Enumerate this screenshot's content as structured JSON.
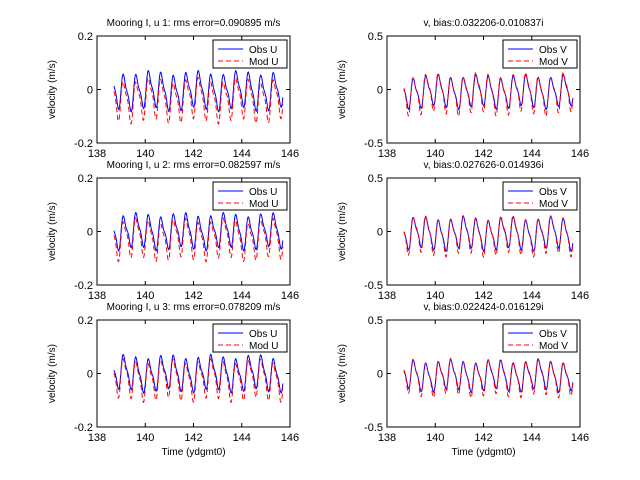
{
  "chart_data": [
    {
      "type": "line",
      "title": "Mooring I, u 1: rms error=0.090895 m/s",
      "ylabel": "velocity (m/s)",
      "xlabel": "",
      "xlim": [
        138,
        146
      ],
      "ylim": [
        -0.2,
        0.2
      ],
      "xticks": [
        "138",
        "140",
        "142",
        "144",
        "146"
      ],
      "yticks": [
        "-0.2",
        "0",
        "0.2"
      ],
      "legend_position": "top-right",
      "series": [
        {
          "name": "Obs U",
          "color": "#0000ff",
          "dash": "solid",
          "amp": 0.075,
          "offset": -0.005,
          "x0": 138.7,
          "x1": 145.7
        },
        {
          "name": "Mod U",
          "color": "#ff0000",
          "dash": "dashed",
          "amp": 0.085,
          "offset": -0.035,
          "x0": 138.7,
          "x1": 145.7
        }
      ]
    },
    {
      "type": "line",
      "title": "v, bias:0.032206-0.010837i",
      "ylabel": "velocity (m/s)",
      "xlabel": "",
      "xlim": [
        138,
        146
      ],
      "ylim": [
        -0.5,
        0.5
      ],
      "xticks": [
        "138",
        "140",
        "142",
        "144",
        "146"
      ],
      "yticks": [
        "-0.5",
        "0",
        "0.5"
      ],
      "legend_position": "top-right",
      "series": [
        {
          "name": "Obs V",
          "color": "#0000ff",
          "dash": "solid",
          "amp": 0.16,
          "offset": -0.02,
          "x0": 138.7,
          "x1": 145.7
        },
        {
          "name": "Mod V",
          "color": "#ff0000",
          "dash": "dashed",
          "amp": 0.2,
          "offset": -0.03,
          "x0": 138.7,
          "x1": 145.7
        }
      ]
    },
    {
      "type": "line",
      "title": "Mooring I, u 2: rms error=0.082597 m/s",
      "ylabel": "velocity (m/s)",
      "xlabel": "",
      "xlim": [
        138,
        146
      ],
      "ylim": [
        -0.2,
        0.2
      ],
      "xticks": [
        "138",
        "140",
        "142",
        "144",
        "146"
      ],
      "yticks": [
        "-0.2",
        "0",
        "0.2"
      ],
      "legend_position": "top-right",
      "series": [
        {
          "name": "Obs U",
          "color": "#0000ff",
          "dash": "solid",
          "amp": 0.07,
          "offset": 0.0,
          "x0": 138.7,
          "x1": 145.7
        },
        {
          "name": "Mod U",
          "color": "#ff0000",
          "dash": "dashed",
          "amp": 0.08,
          "offset": -0.025,
          "x0": 138.7,
          "x1": 145.7
        }
      ]
    },
    {
      "type": "line",
      "title": "v, bias:0.027626-0.014936i",
      "ylabel": "velocity (m/s)",
      "xlabel": "",
      "xlim": [
        138,
        146
      ],
      "ylim": [
        -0.5,
        0.5
      ],
      "xticks": [
        "138",
        "140",
        "142",
        "144",
        "146"
      ],
      "yticks": [
        "-0.5",
        "0",
        "0.5"
      ],
      "legend_position": "top-right",
      "series": [
        {
          "name": "Obs V",
          "color": "#0000ff",
          "dash": "solid",
          "amp": 0.16,
          "offset": -0.02,
          "x0": 138.7,
          "x1": 145.7
        },
        {
          "name": "Mod V",
          "color": "#ff0000",
          "dash": "dashed",
          "amp": 0.19,
          "offset": -0.03,
          "x0": 138.7,
          "x1": 145.7
        }
      ]
    },
    {
      "type": "line",
      "title": "Mooring I, u 3: rms error=0.078209 m/s",
      "ylabel": "velocity (m/s)",
      "xlabel": "Time (ydgmt0)",
      "xlim": [
        138,
        146
      ],
      "ylim": [
        -0.2,
        0.2
      ],
      "xticks": [
        "138",
        "140",
        "142",
        "144",
        "146"
      ],
      "yticks": [
        "-0.2",
        "0",
        "0.2"
      ],
      "legend_position": "top-right",
      "series": [
        {
          "name": "Obs U",
          "color": "#0000ff",
          "dash": "solid",
          "amp": 0.07,
          "offset": 0.0,
          "x0": 138.7,
          "x1": 145.7
        },
        {
          "name": "Mod U",
          "color": "#ff0000",
          "dash": "dashed",
          "amp": 0.08,
          "offset": -0.02,
          "x0": 138.7,
          "x1": 145.7
        }
      ]
    },
    {
      "type": "line",
      "title": "v, bias:0.022424-0.016129i",
      "ylabel": "velocity (m/s)",
      "xlabel": "Time (ydgmt0)",
      "xlim": [
        138,
        146
      ],
      "ylim": [
        -0.5,
        0.5
      ],
      "xticks": [
        "138",
        "140",
        "142",
        "144",
        "146"
      ],
      "yticks": [
        "-0.5",
        "0",
        "0.5"
      ],
      "legend_position": "top-right",
      "series": [
        {
          "name": "Obs V",
          "color": "#0000ff",
          "dash": "solid",
          "amp": 0.15,
          "offset": -0.02,
          "x0": 138.7,
          "x1": 145.7
        },
        {
          "name": "Mod V",
          "color": "#ff0000",
          "dash": "dashed",
          "amp": 0.18,
          "offset": -0.03,
          "x0": 138.7,
          "x1": 145.7
        }
      ]
    }
  ]
}
